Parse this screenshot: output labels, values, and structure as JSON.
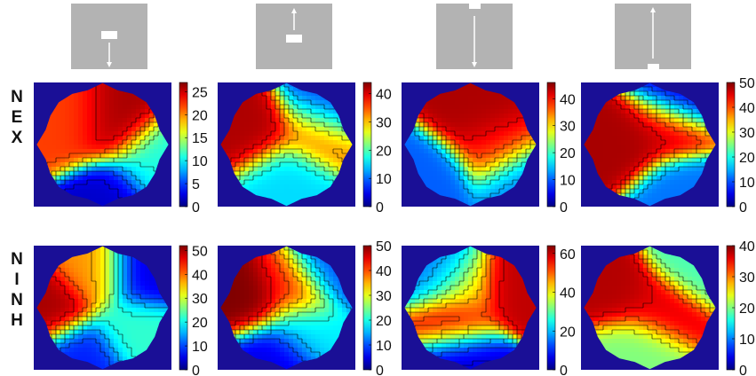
{
  "colors": {
    "background": "#1a0f96",
    "schematic_gray": "#b3b3b3",
    "arrow": "#ffffff"
  },
  "row_labels": [
    "N E X",
    "N I N H"
  ],
  "schematics": [
    {
      "name": "center-rect-arrow-down",
      "arrow": "down"
    },
    {
      "name": "center-rect-arrow-up",
      "arrow": "up"
    },
    {
      "name": "top-notch-arrow-down",
      "arrow": "down"
    },
    {
      "name": "bottom-notch-arrow-up",
      "arrow": "up"
    }
  ],
  "chart_data": [
    {
      "type": "heatmap",
      "row": "N E X",
      "column": 1,
      "colormap": "jet",
      "contours": true,
      "colorbar": {
        "min": 0,
        "max": 27,
        "ticks": [
          0,
          5,
          10,
          15,
          20,
          25
        ]
      },
      "hotspots": [
        {
          "x": 0.55,
          "y": 0.4,
          "value": 26
        },
        {
          "x": 0.3,
          "y": 0.4,
          "value": 22
        },
        {
          "x": 0.55,
          "y": 0.85,
          "value": 2
        },
        {
          "x": 0.8,
          "y": 0.65,
          "value": 11
        }
      ]
    },
    {
      "type": "heatmap",
      "row": "N E X",
      "column": 2,
      "colormap": "jet",
      "contours": true,
      "colorbar": {
        "min": 0,
        "max": 44,
        "ticks": [
          0,
          10,
          20,
          30,
          40
        ]
      },
      "hotspots": [
        {
          "x": 0.3,
          "y": 0.4,
          "value": 42
        },
        {
          "x": 0.68,
          "y": 0.4,
          "value": 34
        },
        {
          "x": 0.5,
          "y": 0.72,
          "value": 15
        },
        {
          "x": 0.75,
          "y": 0.2,
          "value": 8
        }
      ]
    },
    {
      "type": "heatmap",
      "row": "N E X",
      "column": 3,
      "colormap": "jet",
      "contours": true,
      "colorbar": {
        "min": 0,
        "max": 46,
        "ticks": [
          0,
          10,
          20,
          30,
          40
        ]
      },
      "hotspots": [
        {
          "x": 0.55,
          "y": 0.35,
          "value": 44
        },
        {
          "x": 0.65,
          "y": 0.55,
          "value": 38
        },
        {
          "x": 0.25,
          "y": 0.75,
          "value": 10
        },
        {
          "x": 0.8,
          "y": 0.8,
          "value": 12
        }
      ]
    },
    {
      "type": "heatmap",
      "row": "N E X",
      "column": 4,
      "colormap": "jet",
      "contours": true,
      "colorbar": {
        "min": 0,
        "max": 50,
        "ticks": [
          0,
          10,
          20,
          30,
          40,
          50
        ]
      },
      "hotspots": [
        {
          "x": 0.35,
          "y": 0.5,
          "value": 48
        },
        {
          "x": 0.62,
          "y": 0.38,
          "value": 46
        },
        {
          "x": 0.72,
          "y": 0.12,
          "value": 5
        },
        {
          "x": 0.7,
          "y": 0.85,
          "value": 12
        }
      ]
    },
    {
      "type": "heatmap",
      "row": "N I N H",
      "column": 1,
      "colormap": "jet",
      "contours": true,
      "colorbar": {
        "min": 0,
        "max": 52,
        "ticks": [
          0,
          10,
          20,
          30,
          40,
          50
        ]
      },
      "hotspots": [
        {
          "x": 0.15,
          "y": 0.5,
          "value": 50
        },
        {
          "x": 0.45,
          "y": 0.25,
          "value": 38
        },
        {
          "x": 0.75,
          "y": 0.25,
          "value": 5
        },
        {
          "x": 0.7,
          "y": 0.65,
          "value": 22
        },
        {
          "x": 0.35,
          "y": 0.85,
          "value": 8
        }
      ]
    },
    {
      "type": "heatmap",
      "row": "N I N H",
      "column": 2,
      "colormap": "jet",
      "contours": true,
      "colorbar": {
        "min": 0,
        "max": 50,
        "ticks": [
          0,
          10,
          20,
          30,
          40,
          50
        ]
      },
      "hotspots": [
        {
          "x": 0.25,
          "y": 0.45,
          "value": 50
        },
        {
          "x": 0.55,
          "y": 0.35,
          "value": 42
        },
        {
          "x": 0.8,
          "y": 0.2,
          "value": 10
        },
        {
          "x": 0.6,
          "y": 0.65,
          "value": 18
        },
        {
          "x": 0.4,
          "y": 0.85,
          "value": 5
        }
      ]
    },
    {
      "type": "heatmap",
      "row": "N I N H",
      "column": 3,
      "colormap": "jet",
      "contours": true,
      "colorbar": {
        "min": 0,
        "max": 64,
        "ticks": [
          0,
          20,
          40,
          60
        ]
      },
      "hotspots": [
        {
          "x": 0.45,
          "y": 0.35,
          "value": 42
        },
        {
          "x": 0.8,
          "y": 0.35,
          "value": 60
        },
        {
          "x": 0.4,
          "y": 0.6,
          "value": 58
        },
        {
          "x": 0.3,
          "y": 0.25,
          "value": 15
        },
        {
          "x": 0.45,
          "y": 0.88,
          "value": 5
        }
      ]
    },
    {
      "type": "heatmap",
      "row": "N I N H",
      "column": 4,
      "colormap": "jet",
      "contours": true,
      "colorbar": {
        "min": 0,
        "max": 40,
        "ticks": [
          0,
          10,
          20,
          30,
          40
        ]
      },
      "hotspots": [
        {
          "x": 0.3,
          "y": 0.4,
          "value": 38
        },
        {
          "x": 0.55,
          "y": 0.5,
          "value": 36
        },
        {
          "x": 0.8,
          "y": 0.15,
          "value": 18
        },
        {
          "x": 0.4,
          "y": 0.8,
          "value": 20
        }
      ]
    }
  ]
}
